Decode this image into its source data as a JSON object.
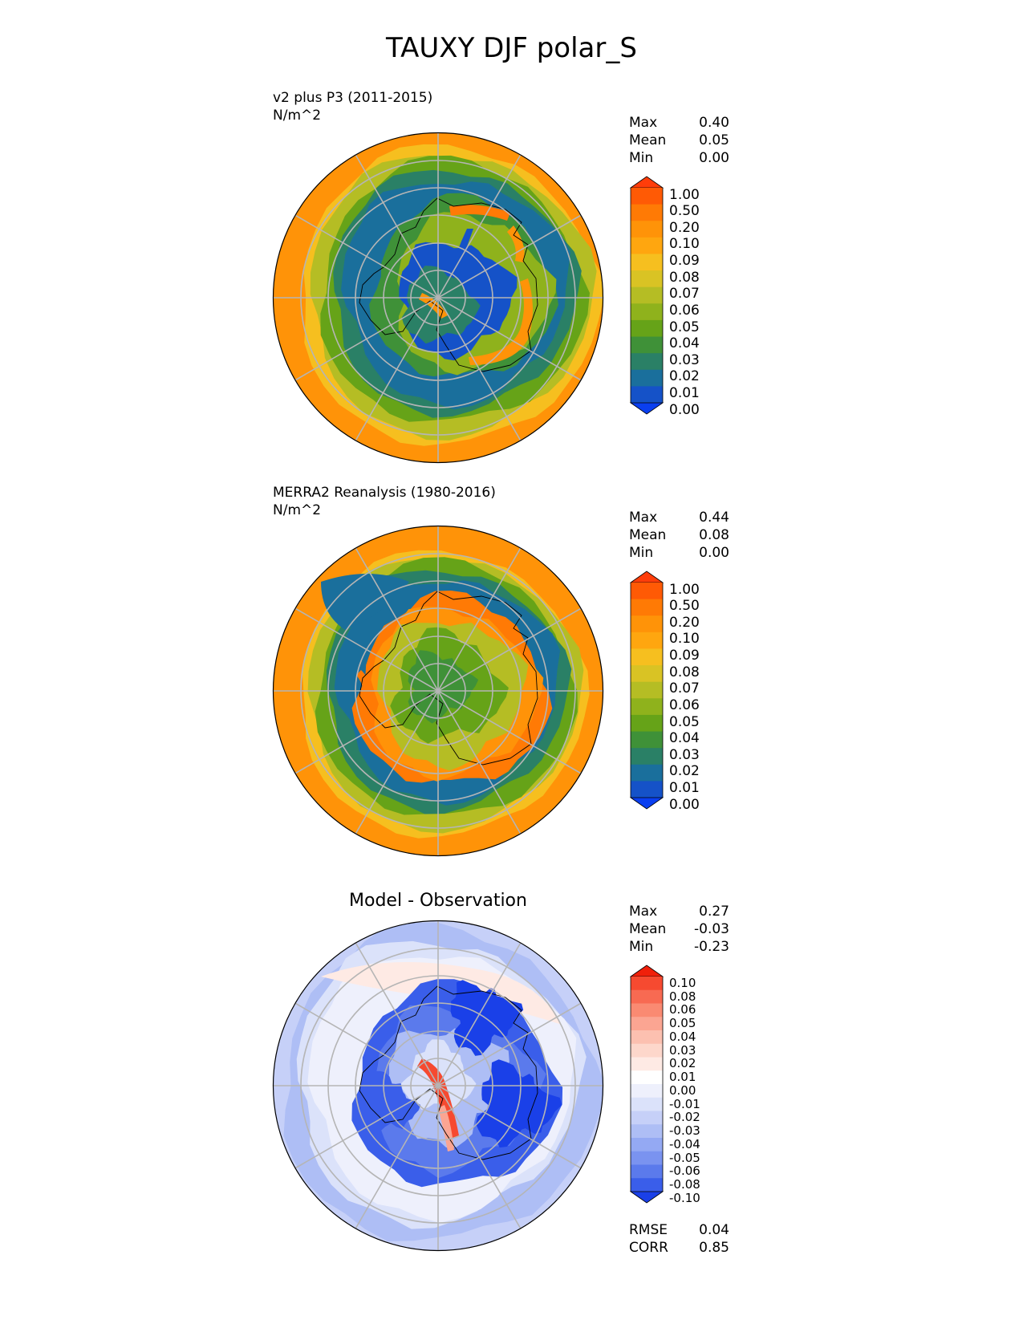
{
  "figure_title": "TAUXY DJF polar_S",
  "panels": [
    {
      "title_line1": "v2 plus P3 (2011-2015)",
      "title_line2": "N/m^2",
      "stats": [
        {
          "label": "Max",
          "value": "0.40"
        },
        {
          "label": "Mean",
          "value": "0.05"
        },
        {
          "label": "Min",
          "value": "0.00"
        }
      ]
    },
    {
      "title_line1": "MERRA2 Reanalysis (1980-2016)",
      "title_line2": "N/m^2",
      "stats": [
        {
          "label": "Max",
          "value": "0.44"
        },
        {
          "label": "Mean",
          "value": "0.08"
        },
        {
          "label": "Min",
          "value": "0.00"
        }
      ]
    },
    {
      "title": "Model - Observation",
      "stats": [
        {
          "label": "Max",
          "value": "0.27"
        },
        {
          "label": "Mean",
          "value": "-0.03"
        },
        {
          "label": "Min",
          "value": "-0.23"
        }
      ],
      "metrics": [
        {
          "label": "RMSE",
          "value": "0.04"
        },
        {
          "label": "CORR",
          "value": "0.85"
        }
      ]
    }
  ],
  "chart_data": [
    {
      "type": "heatmap",
      "projection": "polar stereographic (South Pole)",
      "title": "v2 plus P3 (2011-2015)",
      "units": "N/m^2",
      "colorbar_levels": [
        "1.00",
        "0.50",
        "0.20",
        "0.10",
        "0.09",
        "0.08",
        "0.07",
        "0.06",
        "0.05",
        "0.04",
        "0.03",
        "0.02",
        "0.01",
        "0.00"
      ],
      "colorbar_colors": [
        "#ff3d0a",
        "#ff5a05",
        "#ff7a05",
        "#ff9308",
        "#ffa60f",
        "#f6bf1f",
        "#d9c324",
        "#b5bd24",
        "#8fb21c",
        "#66a318",
        "#3f9138",
        "#2a8066",
        "#1a6f9c",
        "#1552c8",
        "#0a3ff0"
      ],
      "stats": {
        "max": 0.4,
        "mean": 0.05,
        "min": 0.0
      }
    },
    {
      "type": "heatmap",
      "projection": "polar stereographic (South Pole)",
      "title": "MERRA2 Reanalysis (1980-2016)",
      "units": "N/m^2",
      "colorbar_levels": [
        "1.00",
        "0.50",
        "0.20",
        "0.10",
        "0.09",
        "0.08",
        "0.07",
        "0.06",
        "0.05",
        "0.04",
        "0.03",
        "0.02",
        "0.01",
        "0.00"
      ],
      "colorbar_colors": [
        "#ff3d0a",
        "#ff5a05",
        "#ff7a05",
        "#ff9308",
        "#ffa60f",
        "#f6bf1f",
        "#d9c324",
        "#b5bd24",
        "#8fb21c",
        "#66a318",
        "#3f9138",
        "#2a8066",
        "#1a6f9c",
        "#1552c8",
        "#0a3ff0"
      ],
      "stats": {
        "max": 0.44,
        "mean": 0.08,
        "min": 0.0
      }
    },
    {
      "type": "heatmap",
      "projection": "polar stereographic (South Pole)",
      "title": "Model - Observation",
      "colorbar_levels": [
        "0.10",
        "0.08",
        "0.06",
        "0.05",
        "0.04",
        "0.03",
        "0.02",
        "0.01",
        "0.00",
        "-0.01",
        "-0.02",
        "-0.03",
        "-0.04",
        "-0.05",
        "-0.06",
        "-0.08",
        "-0.10"
      ],
      "colorbar_colors": [
        "#f0200a",
        "#f64a30",
        "#f86a52",
        "#fa8a72",
        "#fba592",
        "#fcc0b0",
        "#fdd7cb",
        "#feeae4",
        "#ffffff",
        "#eef0fc",
        "#dbe2fa",
        "#c6d0f8",
        "#aebef5",
        "#94a9f3",
        "#7a93f0",
        "#5b7aec",
        "#3a5eea",
        "#1a40e8"
      ],
      "stats": {
        "max": 0.27,
        "mean": -0.03,
        "min": -0.23
      },
      "rmse": 0.04,
      "corr": 0.85
    }
  ]
}
